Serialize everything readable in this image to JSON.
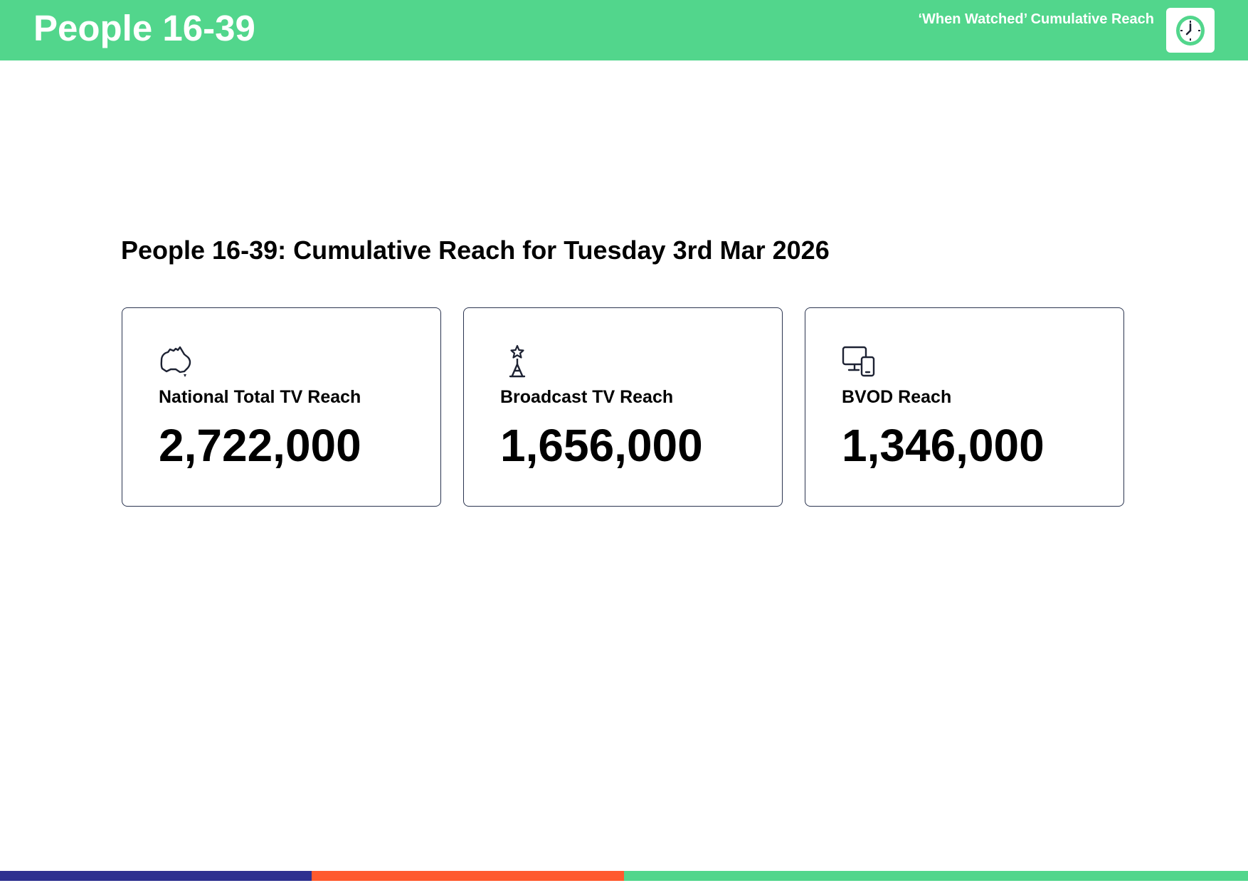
{
  "header": {
    "title": "People 16-39",
    "subtitle": "‘When Watched’ Cumulative Reach",
    "badge_icon": "clock-icon"
  },
  "main": {
    "title": "People 16-39: Cumulative Reach for Tuesday 3rd Mar 2026",
    "cards": [
      {
        "icon": "australia-map-icon",
        "label": "National Total TV Reach",
        "value": "2,722,000"
      },
      {
        "icon": "broadcast-tower-icon",
        "label": "Broadcast TV Reach",
        "value": "1,656,000"
      },
      {
        "icon": "devices-icon",
        "label": "BVOD Reach",
        "value": "1,346,000"
      }
    ]
  },
  "colors": {
    "header_green": "#52d68c",
    "footer_navy": "#2e3190",
    "footer_orange": "#ff5a2e",
    "footer_green": "#52d68c",
    "card_border": "#2b3550"
  }
}
